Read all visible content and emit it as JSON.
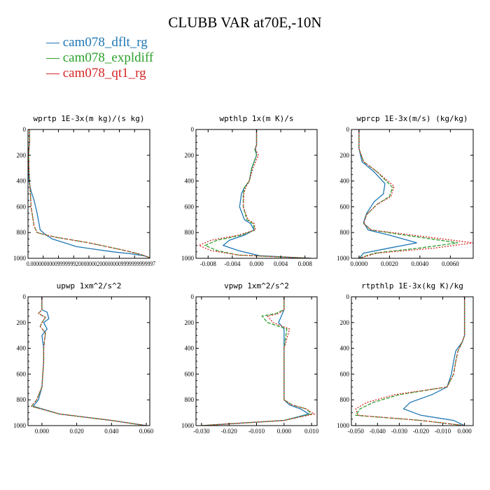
{
  "title": "CLUBB VAR at70E,-10N",
  "legend": [
    {
      "label": "cam078_dflt_rg",
      "color": "#1f77b4"
    },
    {
      "label": "cam078_expldiff",
      "color": "#2ca02c"
    },
    {
      "label": "cam078_qt1_rg",
      "color": "#d62728"
    }
  ],
  "chart_data": [
    {
      "type": "line",
      "title": "wprtp  1E-3x(m kg)/(s kg)",
      "xlim": [
        0.0,
        4e-06
      ],
      "ylim": [
        0,
        1000
      ],
      "xticks": [
        0,
        5e-07,
        1e-06,
        1.5e-06,
        2e-06,
        2.5e-06,
        3e-06,
        3.5e-06,
        4e-06
      ],
      "xtick_labels": [
        "0.000000",
        "0.000000",
        "0.000001",
        "0.000002",
        "0.000002",
        "0.000002",
        "0.000003",
        "0.000004",
        "0.000004"
      ],
      "xtick_text": "0.00000000009999999200000002000000009999999999997",
      "yticks": [
        0,
        200,
        400,
        600,
        800,
        1000
      ],
      "series": [
        {
          "name": "cam078_dflt_rg",
          "x": [
            5e-08,
            5e-08,
            3e-08,
            2e-08,
            2e-08,
            3e-08,
            1e-07,
            2e-07,
            3e-07,
            4e-07,
            5e-07,
            6e-07,
            8e-07,
            1.2e-06,
            1.6e-06,
            2.2e-06,
            2.8e-06,
            3.4e-06,
            3.8e-06,
            4e-06
          ],
          "y": [
            0,
            100,
            150,
            200,
            300,
            400,
            480,
            550,
            650,
            780,
            800,
            820,
            850,
            880,
            910,
            930,
            950,
            965,
            980,
            995
          ]
        },
        {
          "name": "cam078_expldiff",
          "x": [
            5e-08,
            5e-08,
            3e-08,
            2e-08,
            3e-08,
            5e-08,
            8e-08,
            1e-07,
            2e-07,
            3e-07,
            6e-07,
            1e-06,
            1.5e-06,
            2e-06,
            2.6e-06,
            3.2e-06,
            3.7e-06,
            4e-06
          ],
          "y": [
            0,
            100,
            150,
            200,
            300,
            400,
            500,
            600,
            750,
            800,
            820,
            840,
            860,
            880,
            910,
            940,
            970,
            995
          ]
        },
        {
          "name": "cam078_qt1_rg",
          "x": [
            5e-08,
            5e-08,
            3e-08,
            2e-08,
            3e-08,
            5e-08,
            8e-08,
            1e-07,
            2e-07,
            3e-07,
            6e-07,
            1e-06,
            1.5e-06,
            2e-06,
            2.6e-06,
            3.2e-06,
            3.7e-06,
            4e-06
          ],
          "y": [
            0,
            100,
            150,
            200,
            300,
            400,
            500,
            600,
            750,
            800,
            820,
            840,
            860,
            880,
            910,
            940,
            970,
            995
          ]
        }
      ]
    },
    {
      "type": "line",
      "title": "wpthlp  1x(m K)/s",
      "xlim": [
        -0.01,
        0.01
      ],
      "ylim": [
        0,
        1000
      ],
      "xticks": [
        -0.008,
        -0.004,
        0.0,
        0.004,
        0.008
      ],
      "xtick_labels": [
        "-0.008",
        "-0.004",
        "0.000",
        "0.004",
        "0.008"
      ],
      "yticks": [
        0,
        200,
        400,
        600,
        800,
        1000
      ],
      "series": [
        {
          "name": "cam078_dflt_rg",
          "x": [
            0,
            0,
            -0.0002,
            0,
            -0.0008,
            -0.0012,
            -0.002,
            -0.0025,
            -0.0028,
            -0.002,
            -0.001,
            -0.0004,
            -0.002,
            -0.0045,
            -0.0055,
            -0.003,
            0.0005,
            0.009
          ],
          "y": [
            0,
            120,
            150,
            200,
            300,
            400,
            450,
            500,
            600,
            700,
            730,
            780,
            820,
            860,
            900,
            940,
            980,
            1000
          ]
        },
        {
          "name": "cam078_expldiff",
          "x": [
            0,
            0,
            -0.0003,
            0,
            -0.0008,
            -0.0012,
            -0.002,
            -0.0022,
            -0.0022,
            -0.0016,
            -0.0006,
            -0.0003,
            -0.0025,
            -0.0065,
            -0.0085,
            -0.0065,
            -0.003,
            0.009
          ],
          "y": [
            0,
            120,
            150,
            200,
            300,
            400,
            450,
            500,
            600,
            700,
            730,
            780,
            820,
            860,
            900,
            940,
            975,
            1000
          ]
        },
        {
          "name": "cam078_qt1_rg",
          "x": [
            0,
            0,
            -0.0002,
            0.0003,
            -0.0006,
            -0.0012,
            -0.0018,
            -0.0021,
            -0.0022,
            -0.0014,
            -0.0004,
            -0.0002,
            -0.003,
            -0.0075,
            -0.0095,
            -0.0075,
            -0.003,
            0.009
          ],
          "y": [
            0,
            120,
            150,
            200,
            300,
            400,
            450,
            500,
            600,
            700,
            730,
            780,
            820,
            860,
            900,
            940,
            975,
            1000
          ]
        }
      ]
    },
    {
      "type": "line",
      "title": "wprcp  1E-3x(m/s) (kg/kg)",
      "xlim": [
        -0.0005,
        0.0075
      ],
      "ylim": [
        0,
        1000
      ],
      "xticks": [
        0.0,
        0.002,
        0.004,
        0.006
      ],
      "xtick_labels": [
        "0.0000",
        "0.0020",
        "0.0040",
        "0.0060"
      ],
      "yticks": [
        0,
        200,
        400,
        600,
        800,
        1000
      ],
      "series": [
        {
          "name": "cam078_dflt_rg",
          "x": [
            0,
            0,
            0.0002,
            0.001,
            0.0017,
            0.0016,
            0.001,
            0.0005,
            0.0003,
            0.0006,
            0.002,
            0.0038,
            0.002,
            0.0003,
            0
          ],
          "y": [
            0,
            150,
            250,
            330,
            420,
            500,
            560,
            650,
            720,
            780,
            820,
            880,
            920,
            960,
            1000
          ]
        },
        {
          "name": "cam078_expldiff",
          "x": [
            0,
            0,
            0.0003,
            0.0012,
            0.0022,
            0.002,
            0.0012,
            0.0005,
            0.0003,
            0.0008,
            0.003,
            0.0065,
            0.004,
            0.001,
            0
          ],
          "y": [
            0,
            150,
            250,
            330,
            450,
            520,
            580,
            660,
            730,
            780,
            820,
            880,
            920,
            960,
            1000
          ]
        },
        {
          "name": "cam078_qt1_rg",
          "x": [
            0,
            0,
            0.0003,
            0.0012,
            0.0023,
            0.0021,
            0.0012,
            0.0005,
            0.0003,
            0.0008,
            0.0035,
            0.0075,
            0.005,
            0.0012,
            0
          ],
          "y": [
            0,
            150,
            250,
            330,
            440,
            520,
            580,
            660,
            730,
            780,
            820,
            880,
            920,
            960,
            1000
          ]
        }
      ]
    },
    {
      "type": "line",
      "title": "upwp  1xm^2/s^2",
      "xlim": [
        -0.008,
        0.062
      ],
      "ylim": [
        0,
        1000
      ],
      "xticks": [
        0.0,
        0.02,
        0.04,
        0.06
      ],
      "xtick_labels": [
        "0.000",
        "0.020",
        "0.040",
        "0.060"
      ],
      "yticks": [
        0,
        200,
        400,
        600,
        800,
        1000
      ],
      "series": [
        {
          "name": "cam078_dflt_rg",
          "x": [
            0,
            0,
            0.003,
            0.004,
            0.001,
            0.003,
            0,
            0.001,
            0.001,
            0,
            -0.002,
            -0.005,
            0.01,
            0.04,
            0.06
          ],
          "y": [
            0,
            100,
            120,
            170,
            200,
            250,
            300,
            400,
            500,
            700,
            800,
            850,
            910,
            960,
            1000
          ]
        },
        {
          "name": "cam078_expldiff",
          "x": [
            0,
            0,
            -0.002,
            0.002,
            0,
            -0.001,
            0.002,
            0.001,
            0.001,
            0,
            -0.003,
            -0.006,
            0.01,
            0.04,
            0.06
          ],
          "y": [
            0,
            100,
            130,
            160,
            200,
            230,
            280,
            400,
            500,
            700,
            800,
            850,
            910,
            960,
            1000
          ]
        },
        {
          "name": "cam078_qt1_rg",
          "x": [
            0,
            0,
            -0.002,
            0.002,
            0,
            -0.001,
            0.002,
            0.001,
            0.001,
            0,
            -0.003,
            -0.006,
            0.01,
            0.04,
            0.06
          ],
          "y": [
            0,
            100,
            130,
            160,
            200,
            230,
            280,
            400,
            500,
            700,
            800,
            850,
            910,
            960,
            1000
          ]
        }
      ]
    },
    {
      "type": "line",
      "title": "vpwp  1xm^2/s^2",
      "xlim": [
        -0.032,
        0.012
      ],
      "ylim": [
        0,
        1000
      ],
      "xticks": [
        -0.03,
        -0.02,
        -0.01,
        0.0,
        0.01
      ],
      "xtick_labels": [
        "-0.030",
        "-0.020",
        "-0.010",
        "0.000",
        "0.010"
      ],
      "yticks": [
        0,
        200,
        400,
        600,
        800,
        1000
      ],
      "series": [
        {
          "name": "cam078_dflt_rg",
          "x": [
            0,
            0,
            -0.001,
            -0.002,
            0,
            0,
            0,
            0,
            0.002,
            0.006,
            0.009,
            0,
            -0.03
          ],
          "y": [
            0,
            100,
            150,
            200,
            250,
            400,
            600,
            800,
            840,
            870,
            910,
            960,
            1000
          ]
        },
        {
          "name": "cam078_expldiff",
          "x": [
            0,
            0,
            -0.003,
            -0.008,
            -0.006,
            0.001,
            0,
            0,
            0.003,
            0.008,
            0.01,
            0,
            -0.03
          ],
          "y": [
            0,
            100,
            130,
            150,
            200,
            250,
            400,
            800,
            840,
            870,
            910,
            960,
            1000
          ]
        },
        {
          "name": "cam078_qt1_rg",
          "x": [
            0,
            0,
            -0.002,
            -0.006,
            -0.004,
            0.002,
            0,
            0,
            0.003,
            0.008,
            0.011,
            0,
            -0.03
          ],
          "y": [
            0,
            100,
            130,
            150,
            200,
            250,
            400,
            800,
            840,
            870,
            910,
            960,
            1000
          ]
        }
      ]
    },
    {
      "type": "line",
      "title": "rtpthlp  1E-3x(kg K)/kg",
      "xlim": [
        -0.052,
        0.004
      ],
      "ylim": [
        0,
        1000
      ],
      "xticks": [
        -0.05,
        -0.04,
        -0.03,
        -0.02,
        -0.01,
        0.0
      ],
      "xtick_labels": [
        "-0.050",
        "-0.040",
        "-0.030",
        "-0.020",
        "-0.010",
        "0.000"
      ],
      "yticks": [
        0,
        200,
        400,
        600,
        800,
        1000
      ],
      "series": [
        {
          "name": "cam078_dflt_rg",
          "x": [
            0,
            0,
            -0.001,
            -0.004,
            -0.005,
            -0.006,
            -0.008,
            -0.015,
            -0.025,
            -0.028,
            -0.02,
            -0.005,
            0
          ],
          "y": [
            0,
            300,
            350,
            420,
            500,
            600,
            700,
            760,
            820,
            870,
            920,
            960,
            1000
          ]
        },
        {
          "name": "cam078_expldiff",
          "x": [
            0,
            0,
            -0.001,
            -0.003,
            -0.004,
            -0.005,
            -0.008,
            -0.03,
            -0.042,
            -0.048,
            -0.05,
            -0.02,
            0
          ],
          "y": [
            0,
            300,
            350,
            420,
            500,
            600,
            700,
            760,
            820,
            870,
            920,
            960,
            1000
          ]
        },
        {
          "name": "cam078_qt1_rg",
          "x": [
            0,
            0,
            -0.001,
            -0.003,
            -0.004,
            -0.005,
            -0.008,
            -0.032,
            -0.045,
            -0.05,
            -0.049,
            -0.02,
            0
          ],
          "y": [
            0,
            300,
            350,
            420,
            500,
            600,
            700,
            760,
            820,
            870,
            920,
            960,
            1000
          ]
        }
      ]
    }
  ]
}
